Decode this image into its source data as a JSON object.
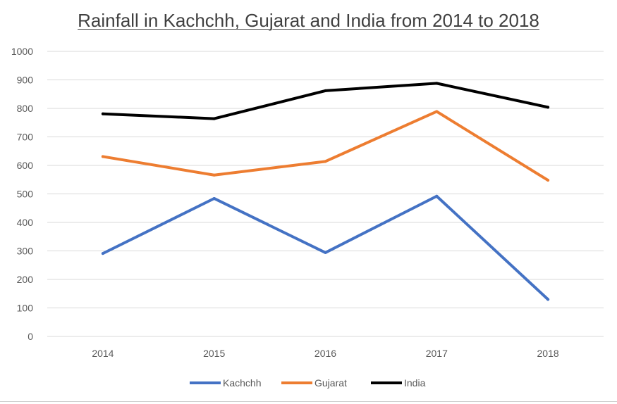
{
  "chart_data": {
    "type": "line",
    "title": "Rainfall in Kachchh, Gujarat and India from 2014 to 2018",
    "xlabel": "",
    "ylabel": "",
    "categories": [
      "2014",
      "2015",
      "2016",
      "2017",
      "2018"
    ],
    "ylim": [
      0,
      1000
    ],
    "yticks": [
      0,
      100,
      200,
      300,
      400,
      500,
      600,
      700,
      800,
      900,
      1000
    ],
    "grid": true,
    "legend_position": "bottom",
    "series": [
      {
        "name": "Kachchh",
        "color": "#4472C4",
        "values": [
          291,
          484,
          294,
          492,
          130
        ]
      },
      {
        "name": "Gujarat",
        "color": "#ED7D31",
        "values": [
          631,
          566,
          614,
          789,
          548
        ]
      },
      {
        "name": "India",
        "color": "#000000",
        "values": [
          781,
          764,
          862,
          888,
          804
        ]
      }
    ]
  }
}
